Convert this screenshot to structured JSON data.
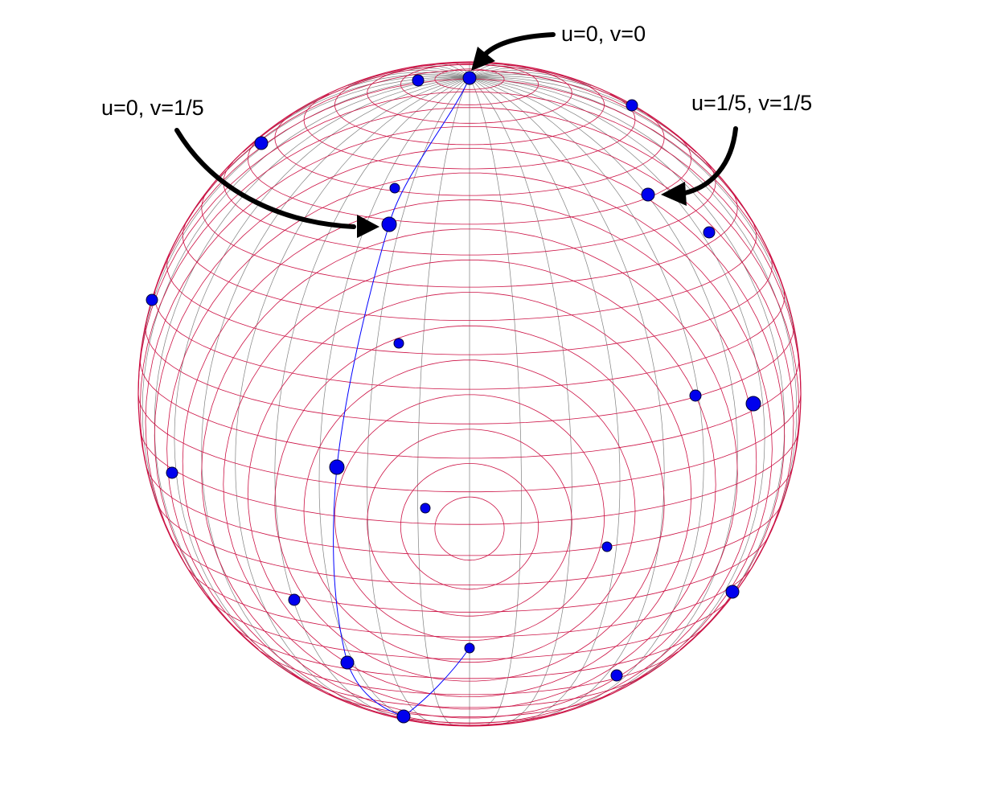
{
  "annotations": {
    "top": "u=0, v=0",
    "left": "u=0, v=1/5",
    "right": "u=1/5, v=1/5"
  },
  "style": {
    "latitude_color": "#cc1144",
    "meridian_color": "#808080",
    "point_color": "#0000ee",
    "path_color": "#0000ff",
    "arrow_color": "#000000"
  }
}
